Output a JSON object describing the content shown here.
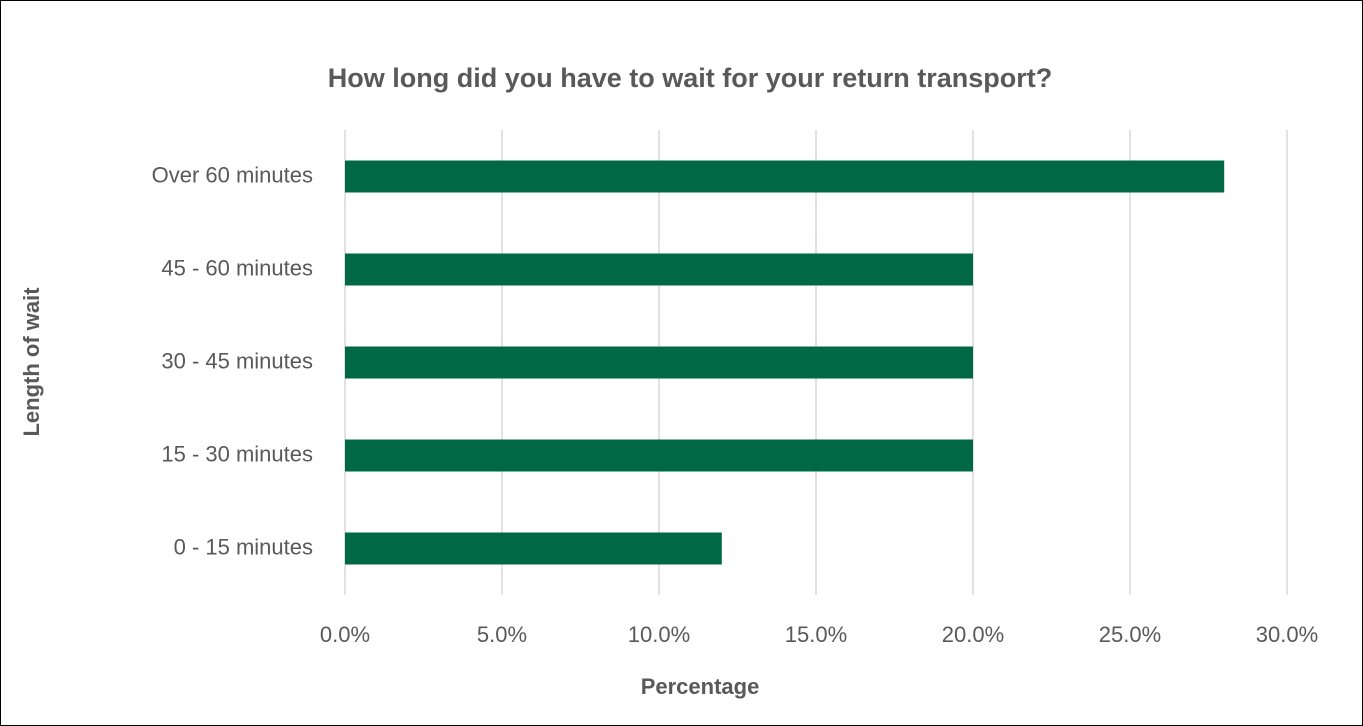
{
  "chart_data": {
    "type": "bar",
    "orientation": "horizontal",
    "title": "How long did you have to wait for your return transport?",
    "x_label": "Percentage",
    "y_label": "Length of wait",
    "categories": [
      "Over 60 minutes",
      "45 - 60 minutes",
      "30 - 45 minutes",
      "15 - 30 minutes",
      "0 - 15 minutes"
    ],
    "values": [
      28,
      20,
      20,
      20,
      12
    ],
    "color": "#006845",
    "xlim": [
      0,
      30
    ],
    "xticks": [
      {
        "value": 0,
        "label": "0.0%"
      },
      {
        "value": 5,
        "label": "5.0%"
      },
      {
        "value": 10,
        "label": "10.0%"
      },
      {
        "value": 15,
        "label": "15.0%"
      },
      {
        "value": 20,
        "label": "20.0%"
      },
      {
        "value": 25,
        "label": "25.0%"
      },
      {
        "value": 30,
        "label": "30.0%"
      }
    ],
    "grid": true
  }
}
